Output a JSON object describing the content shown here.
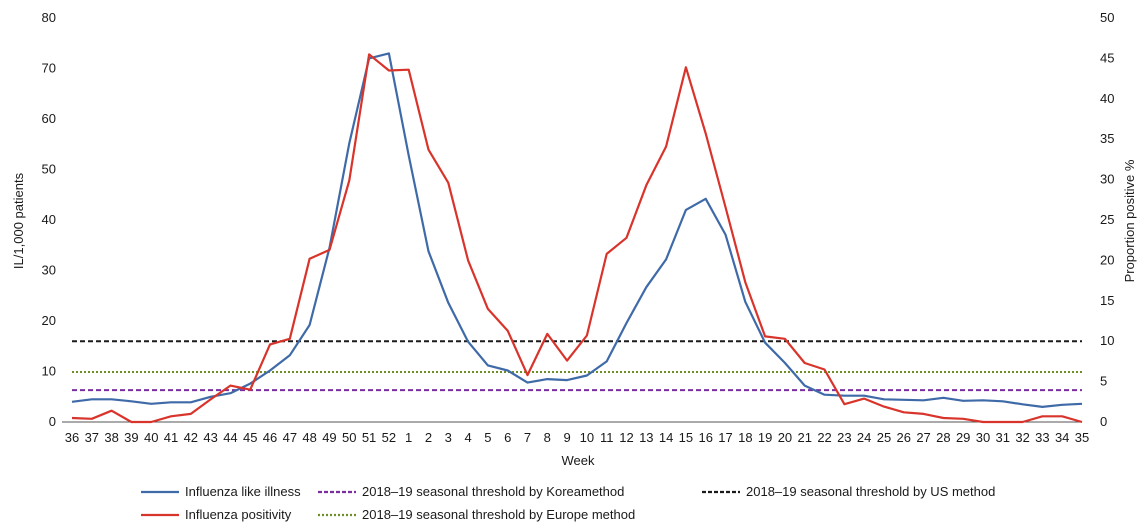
{
  "chart_data": {
    "type": "line",
    "xlabel": "Week",
    "ylabel_left": "IL/1,000 patients",
    "ylabel_right": "Proportion positive %",
    "ylim_left": [
      0,
      80
    ],
    "ylim_right": [
      0,
      50
    ],
    "yticks_left": [
      "0",
      "10",
      "20",
      "30",
      "40",
      "50",
      "60",
      "70",
      "80"
    ],
    "yticks_right": [
      "0",
      "5",
      "10",
      "15",
      "20",
      "25",
      "30",
      "35",
      "40",
      "45",
      "50"
    ],
    "categories": [
      "36",
      "37",
      "38",
      "39",
      "40",
      "41",
      "42",
      "43",
      "44",
      "45",
      "46",
      "47",
      "48",
      "49",
      "50",
      "51",
      "52",
      "1",
      "2",
      "3",
      "4",
      "5",
      "6",
      "7",
      "8",
      "9",
      "10",
      "11",
      "12",
      "13",
      "14",
      "15",
      "16",
      "17",
      "18",
      "19",
      "20",
      "21",
      "22",
      "23",
      "24",
      "25",
      "26",
      "27",
      "28",
      "29",
      "30",
      "31",
      "32",
      "33",
      "34",
      "35"
    ],
    "series": [
      {
        "name": "Influenza like illness",
        "axis": "left",
        "color": "#3f6aa8",
        "values": [
          4.0,
          4.5,
          4.5,
          4.1,
          3.6,
          3.9,
          3.9,
          5.0,
          5.7,
          7.6,
          10.2,
          13.2,
          19.2,
          34.5,
          55.2,
          72.0,
          73.0,
          52.8,
          33.8,
          23.6,
          15.9,
          11.2,
          10.2,
          7.8,
          8.5,
          8.3,
          9.2,
          12.0,
          19.6,
          26.7,
          32.2,
          42.0,
          44.2,
          37.1,
          23.8,
          15.7,
          11.7,
          7.2,
          5.4,
          5.2,
          5.2,
          4.5,
          4.4,
          4.3,
          4.8,
          4.2,
          4.3,
          4.1,
          3.5,
          3.0,
          3.4,
          3.6
        ]
      },
      {
        "name": "Influenza positivity",
        "axis": "right",
        "color": "#d9342b",
        "values": [
          0.5,
          0.4,
          1.4,
          0.0,
          0.0,
          0.7,
          1.0,
          2.8,
          4.5,
          4.0,
          9.6,
          10.3,
          20.2,
          21.3,
          29.9,
          45.5,
          43.5,
          43.6,
          33.7,
          29.6,
          20.0,
          14.0,
          11.3,
          5.8,
          10.9,
          7.6,
          10.7,
          20.8,
          22.8,
          29.3,
          34.1,
          43.9,
          35.7,
          26.6,
          17.3,
          10.6,
          10.3,
          7.3,
          6.5,
          2.2,
          2.9,
          1.9,
          1.2,
          1.0,
          0.5,
          0.4,
          0.0,
          0.0,
          0.0,
          0.7,
          0.7,
          0.0
        ]
      }
    ],
    "thresholds": [
      {
        "name": "2018–19 seasonal threshold by Koreamethod",
        "axis": "left",
        "value": 6.3,
        "color": "#7b2f9e",
        "style": "dashed"
      },
      {
        "name": "2018–19 seasonal threshold by Europe method",
        "axis": "left",
        "value": 9.9,
        "color": "#6e8f23",
        "style": "dotted"
      },
      {
        "name": "2018–19 seasonal threshold by US method",
        "axis": "left",
        "value": 16.0,
        "color": "#1a1a1a",
        "style": "dashed"
      }
    ],
    "grid": false,
    "legend_position": "bottom"
  },
  "legend": [
    {
      "label": "Influenza like illness",
      "color": "#3f6aa8",
      "style": "solid"
    },
    {
      "label": "2018–19 seasonal threshold by Koreamethod",
      "color": "#7b2f9e",
      "style": "dashed"
    },
    {
      "label": "2018–19 seasonal threshold by US method",
      "color": "#1a1a1a",
      "style": "dashed"
    },
    {
      "label": "Influenza positivity",
      "color": "#d9342b",
      "style": "solid"
    },
    {
      "label": "2018–19 seasonal threshold by Europe method",
      "color": "#6e8f23",
      "style": "dotted"
    }
  ]
}
